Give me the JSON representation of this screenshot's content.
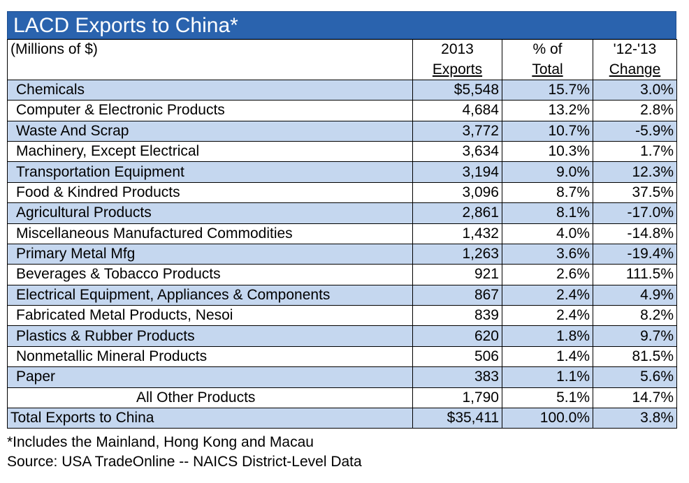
{
  "title": "LACD Exports to China*",
  "header": {
    "unit": "(Millions of $)",
    "col1_top": "2013",
    "col1_bottom": "Exports",
    "col2_top": "% of",
    "col2_bottom": "Total",
    "col3_top": "'12-'13",
    "col3_bottom": "Change"
  },
  "rows": [
    {
      "name": "Chemicals",
      "exports": "$5,548",
      "pct": "15.7%",
      "change": "3.0%"
    },
    {
      "name": "Computer & Electronic Products",
      "exports": "4,684",
      "pct": "13.2%",
      "change": "2.8%"
    },
    {
      "name": "Waste And Scrap",
      "exports": "3,772",
      "pct": "10.7%",
      "change": "-5.9%"
    },
    {
      "name": "Machinery, Except Electrical",
      "exports": "3,634",
      "pct": "10.3%",
      "change": "1.7%"
    },
    {
      "name": "Transportation Equipment",
      "exports": "3,194",
      "pct": "9.0%",
      "change": "12.3%"
    },
    {
      "name": "Food & Kindred Products",
      "exports": "3,096",
      "pct": "8.7%",
      "change": "37.5%"
    },
    {
      "name": "Agricultural Products",
      "exports": "2,861",
      "pct": "8.1%",
      "change": "-17.0%"
    },
    {
      "name": "Miscellaneous Manufactured Commodities",
      "exports": "1,432",
      "pct": "4.0%",
      "change": "-14.8%"
    },
    {
      "name": "Primary Metal Mfg",
      "exports": "1,263",
      "pct": "3.6%",
      "change": "-19.4%"
    },
    {
      "name": "Beverages & Tobacco Products",
      "exports": "921",
      "pct": "2.6%",
      "change": "111.5%"
    },
    {
      "name": "Electrical Equipment, Appliances & Components",
      "exports": "867",
      "pct": "2.4%",
      "change": "4.9%"
    },
    {
      "name": "Fabricated Metal Products, Nesoi",
      "exports": "839",
      "pct": "2.4%",
      "change": "8.2%"
    },
    {
      "name": "Plastics & Rubber Products",
      "exports": "620",
      "pct": "1.8%",
      "change": "9.7%"
    },
    {
      "name": "Nonmetallic Mineral Products",
      "exports": "506",
      "pct": "1.4%",
      "change": "81.5%"
    },
    {
      "name": "Paper",
      "exports": "383",
      "pct": "1.1%",
      "change": "5.6%"
    },
    {
      "name": "All Other Products",
      "exports": "1,790",
      "pct": "5.1%",
      "change": "14.7%"
    }
  ],
  "total": {
    "name": "Total Exports to China",
    "exports": "$35,411",
    "pct": "100.0%",
    "change": "3.8%"
  },
  "footnotes": {
    "note": "*Includes the Mainland, Hong Kong and Macau",
    "source": "Source: USA TradeOnline -- NAICS District-Level Data"
  },
  "colors": {
    "title_bg": "#2a63ae",
    "row_blue": "#c5d7ef",
    "row_white": "#ffffff"
  },
  "chart_data": {
    "type": "table",
    "title": "LACD Exports to China*",
    "unit": "(Millions of $)",
    "columns": [
      "2013 Exports",
      "% of Total",
      "'12-'13 Change"
    ],
    "categories": [
      "Chemicals",
      "Computer & Electronic Products",
      "Waste And Scrap",
      "Machinery, Except Electrical",
      "Transportation Equipment",
      "Food & Kindred Products",
      "Agricultural Products",
      "Miscellaneous Manufactured Commodities",
      "Primary Metal Mfg",
      "Beverages & Tobacco Products",
      "Electrical Equipment, Appliances & Components",
      "Fabricated Metal Products, Nesoi",
      "Plastics & Rubber Products",
      "Nonmetallic Mineral Products",
      "Paper",
      "All Other Products"
    ],
    "series": [
      {
        "name": "2013 Exports",
        "values": [
          5548,
          4684,
          3772,
          3634,
          3194,
          3096,
          2861,
          1432,
          1263,
          921,
          867,
          839,
          620,
          506,
          383,
          1790
        ]
      },
      {
        "name": "% of Total",
        "values": [
          15.7,
          13.2,
          10.7,
          10.3,
          9.0,
          8.7,
          8.1,
          4.0,
          3.6,
          2.6,
          2.4,
          2.4,
          1.8,
          1.4,
          1.1,
          5.1
        ]
      },
      {
        "name": "'12-'13 Change",
        "values": [
          3.0,
          2.8,
          -5.9,
          1.7,
          12.3,
          37.5,
          -17.0,
          -14.8,
          -19.4,
          111.5,
          4.9,
          8.2,
          9.7,
          81.5,
          5.6,
          14.7
        ]
      }
    ],
    "total": {
      "exports": 35411,
      "pct": 100.0,
      "change": 3.8
    }
  }
}
